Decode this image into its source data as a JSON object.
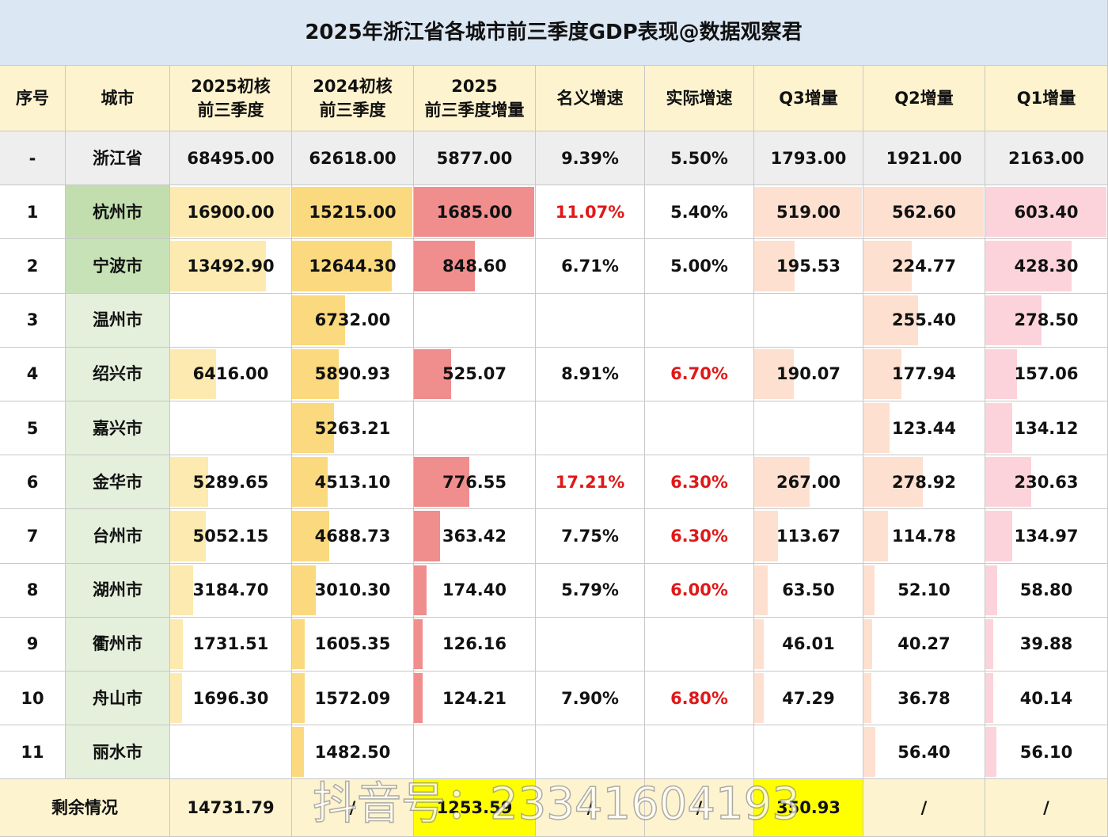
{
  "title": "2025年浙江省各城市前三季度GDP表现@数据观察君",
  "header": [
    "序号",
    "城市",
    "2025初核\n前三季度",
    "2024初核\n前三季度",
    "2025\n前三季度增量",
    "名义增速",
    "实际增速",
    "Q3增量",
    "Q2增量",
    "Q1增量"
  ],
  "rows": [
    [
      "-",
      "浙江省",
      "68495.00",
      "62618.00",
      "5877.00",
      "9.39%",
      "5.50%",
      "1793.00",
      "1921.00",
      "2163.00"
    ],
    [
      "1",
      "杭州市",
      "16900.00",
      "15215.00",
      "1685.00",
      "11.07%",
      "5.40%",
      "519.00",
      "562.60",
      "603.40"
    ],
    [
      "2",
      "宁波市",
      "13492.90",
      "12644.30",
      "848.60",
      "6.71%",
      "5.00%",
      "195.53",
      "224.77",
      "428.30"
    ],
    [
      "3",
      "温州市",
      null,
      "6732.00",
      null,
      null,
      null,
      null,
      "255.40",
      "278.50"
    ],
    [
      "4",
      "绍兴市",
      "6416.00",
      "5890.93",
      "525.07",
      "8.91%",
      "6.70%",
      "190.07",
      "177.94",
      "157.06"
    ],
    [
      "5",
      "嘉兴市",
      null,
      "5263.21",
      null,
      null,
      null,
      null,
      "123.44",
      "134.12"
    ],
    [
      "6",
      "金华市",
      "5289.65",
      "4513.10",
      "776.55",
      "17.21%",
      "6.30%",
      "267.00",
      "278.92",
      "230.63"
    ],
    [
      "7",
      "台州市",
      "5052.15",
      "4688.73",
      "363.42",
      "7.75%",
      "6.30%",
      "113.67",
      "114.78",
      "134.97"
    ],
    [
      "8",
      "湖州市",
      "3184.70",
      "3010.30",
      "174.40",
      "5.79%",
      "6.00%",
      "63.50",
      "52.10",
      "58.80"
    ],
    [
      "9",
      "衢州市",
      "1731.51",
      "1605.35",
      "126.16",
      null,
      null,
      "46.01",
      "40.27",
      "39.88"
    ],
    [
      "10",
      "舟山市",
      "1696.30",
      "1572.09",
      "124.21",
      "7.90%",
      "6.80%",
      "47.29",
      "36.78",
      "40.14"
    ],
    [
      "11",
      "丽水市",
      null,
      "1482.50",
      null,
      null,
      null,
      null,
      "56.40",
      "56.10"
    ]
  ],
  "footer": [
    "剩余情况",
    "14731.79",
    "/",
    "1253.59",
    "/",
    "/",
    "350.93",
    "/",
    "/"
  ],
  "watermark": "抖音号：23341604193"
}
